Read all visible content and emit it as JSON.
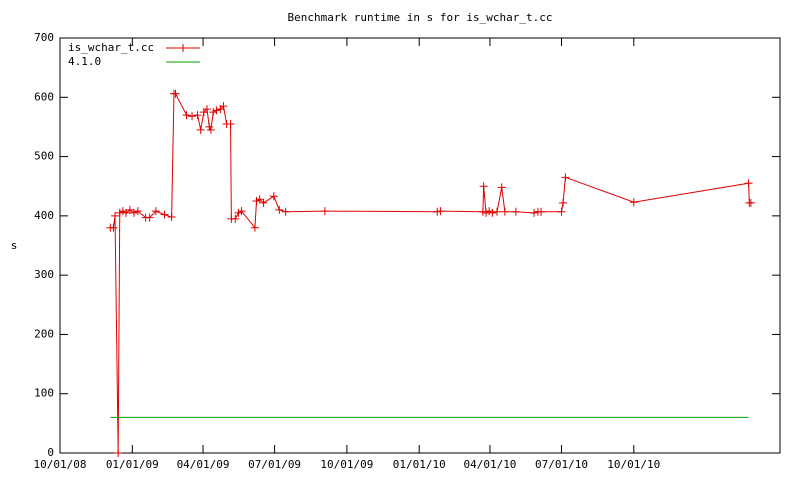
{
  "chart_data": {
    "type": "line",
    "title": "Benchmark runtime in s for is_wchar_t.cc",
    "ylabel": "s",
    "xlim": [
      "2008-10-01",
      "2011-04-05"
    ],
    "xticks": [
      {
        "value": "2008-10-01",
        "label": "10/01/08"
      },
      {
        "value": "2009-01-01",
        "label": "01/01/09"
      },
      {
        "value": "2009-04-01",
        "label": "04/01/09"
      },
      {
        "value": "2009-07-01",
        "label": "07/01/09"
      },
      {
        "value": "2009-10-01",
        "label": "10/01/09"
      },
      {
        "value": "2010-01-01",
        "label": "01/01/10"
      },
      {
        "value": "2010-04-01",
        "label": "04/01/10"
      },
      {
        "value": "2010-07-01",
        "label": "07/01/10"
      },
      {
        "value": "2010-10-01",
        "label": "10/01/10"
      }
    ],
    "ylim": [
      0,
      700
    ],
    "yticks": [
      0,
      100,
      200,
      300,
      400,
      500,
      600,
      700
    ],
    "grid": false,
    "legend": "top-left",
    "series": [
      {
        "name": "is_wchar_t.cc",
        "color": "#e00000",
        "marker": "+",
        "x": [
          "2008-12-04",
          "2008-12-08",
          "2008-12-10",
          "2008-12-14",
          "2008-12-16",
          "2008-12-20",
          "2008-12-24",
          "2008-12-29",
          "2009-01-03",
          "2009-01-08",
          "2009-01-18",
          "2009-01-23",
          "2009-01-31",
          "2009-02-11",
          "2009-02-20",
          "2009-02-23",
          "2009-02-25",
          "2009-03-11",
          "2009-03-18",
          "2009-03-25",
          "2009-03-29",
          "2009-04-02",
          "2009-04-06",
          "2009-04-09",
          "2009-04-11",
          "2009-04-14",
          "2009-04-18",
          "2009-04-23",
          "2009-04-27",
          "2009-05-01",
          "2009-05-06",
          "2009-05-07",
          "2009-05-12",
          "2009-05-16",
          "2009-05-20",
          "2009-06-06",
          "2009-06-08",
          "2009-06-12",
          "2009-06-17",
          "2009-06-30",
          "2009-07-07",
          "2009-07-15",
          "2009-09-03",
          "2010-01-24",
          "2010-01-28",
          "2010-03-23",
          "2010-03-24",
          "2010-03-27",
          "2010-03-31",
          "2010-04-04",
          "2010-04-10",
          "2010-04-16",
          "2010-04-20",
          "2010-05-04",
          "2010-05-27",
          "2010-06-01",
          "2010-06-05",
          "2010-07-01",
          "2010-07-03",
          "2010-07-06",
          "2010-10-01",
          "2011-02-24",
          "2011-02-25",
          "2011-02-27"
        ],
        "values": [
          380,
          380,
          400,
          0,
          405,
          408,
          405,
          410,
          405,
          408,
          397,
          397,
          408,
          402,
          398,
          606,
          606,
          570,
          568,
          570,
          545,
          575,
          580,
          550,
          545,
          575,
          578,
          580,
          585,
          555,
          555,
          395,
          395,
          405,
          408,
          380,
          425,
          428,
          422,
          433,
          410,
          407,
          408,
          407,
          408,
          407,
          450,
          405,
          408,
          405,
          407,
          448,
          407,
          407,
          405,
          407,
          407,
          407,
          422,
          465,
          423,
          455,
          422,
          422
        ]
      },
      {
        "name": "4.1.0",
        "color": "#00a000",
        "marker": null,
        "x": [
          "2008-12-04",
          "2011-02-24"
        ],
        "values": [
          60,
          60
        ]
      }
    ]
  }
}
